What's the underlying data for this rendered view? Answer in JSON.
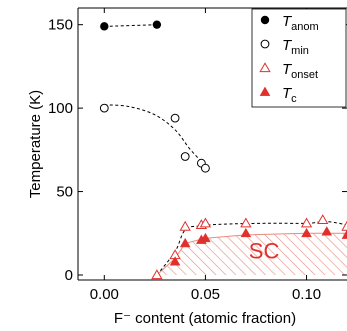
{
  "chart_data": {
    "type": "scatter",
    "xlabel": "F⁻ content (atomic fraction)",
    "ylabel": "Temperature (K)",
    "xlim": [
      -0.013,
      0.12
    ],
    "ylim": [
      -3,
      160
    ],
    "x_ticks": [
      0.0,
      0.05,
      0.1
    ],
    "x_tick_labels": [
      "0.00",
      "0.05",
      "0.10"
    ],
    "y_ticks": [
      0,
      50,
      100,
      150
    ],
    "y_tick_labels": [
      "0",
      "50",
      "100",
      "150"
    ],
    "legend_position": "top-right",
    "region_label": "SC",
    "colors": {
      "onset": "#e0302c",
      "region_hatch": "#e88a80",
      "black": "#000000"
    },
    "series": [
      {
        "key": "anom",
        "name_main": "T",
        "name_sub": "anom",
        "marker": "filled-circle",
        "points": [
          [
            0.0,
            149
          ],
          [
            0.026,
            150
          ]
        ]
      },
      {
        "key": "min",
        "name_main": "T",
        "name_sub": "min",
        "marker": "open-circle",
        "points": [
          [
            0.0,
            100
          ],
          [
            0.035,
            94
          ],
          [
            0.04,
            71
          ],
          [
            0.048,
            67
          ],
          [
            0.05,
            64
          ]
        ]
      },
      {
        "key": "onset",
        "name_main": "T",
        "name_sub": "onset",
        "marker": "open-triangle",
        "points": [
          [
            0.026,
            0
          ],
          [
            0.035,
            12
          ],
          [
            0.04,
            29
          ],
          [
            0.048,
            30
          ],
          [
            0.05,
            31
          ],
          [
            0.07,
            31
          ],
          [
            0.1,
            31
          ],
          [
            0.108,
            33
          ],
          [
            0.12,
            29
          ]
        ]
      },
      {
        "key": "c",
        "name_main": "T",
        "name_sub": "c",
        "marker": "filled-triangle",
        "points": [
          [
            0.035,
            8
          ],
          [
            0.04,
            19
          ],
          [
            0.048,
            21
          ],
          [
            0.05,
            22
          ],
          [
            0.07,
            25
          ],
          [
            0.1,
            25
          ],
          [
            0.11,
            26
          ],
          [
            0.12,
            24
          ]
        ]
      }
    ],
    "trend_lines": [
      {
        "key": "anom",
        "style": "dashed",
        "points": [
          [
            0.0,
            149
          ],
          [
            0.026,
            150
          ]
        ]
      },
      {
        "key": "min",
        "style": "dashed",
        "points": [
          [
            0.0,
            102
          ],
          [
            0.012,
            101
          ],
          [
            0.025,
            96
          ],
          [
            0.035,
            87
          ],
          [
            0.042,
            76
          ],
          [
            0.048,
            68
          ],
          [
            0.05,
            65
          ]
        ]
      },
      {
        "key": "onset",
        "style": "dashed",
        "points": [
          [
            0.026,
            0
          ],
          [
            0.035,
            14
          ],
          [
            0.04,
            27
          ],
          [
            0.048,
            29.5
          ],
          [
            0.06,
            30.5
          ],
          [
            0.08,
            31
          ],
          [
            0.1,
            31
          ],
          [
            0.11,
            32
          ],
          [
            0.12,
            30
          ]
        ]
      }
    ],
    "sc_region": [
      [
        0.026,
        0
      ],
      [
        0.035,
        10
      ],
      [
        0.04,
        19
      ],
      [
        0.05,
        22
      ],
      [
        0.07,
        24
      ],
      [
        0.1,
        25
      ],
      [
        0.12,
        25
      ],
      [
        0.12,
        0
      ]
    ]
  }
}
